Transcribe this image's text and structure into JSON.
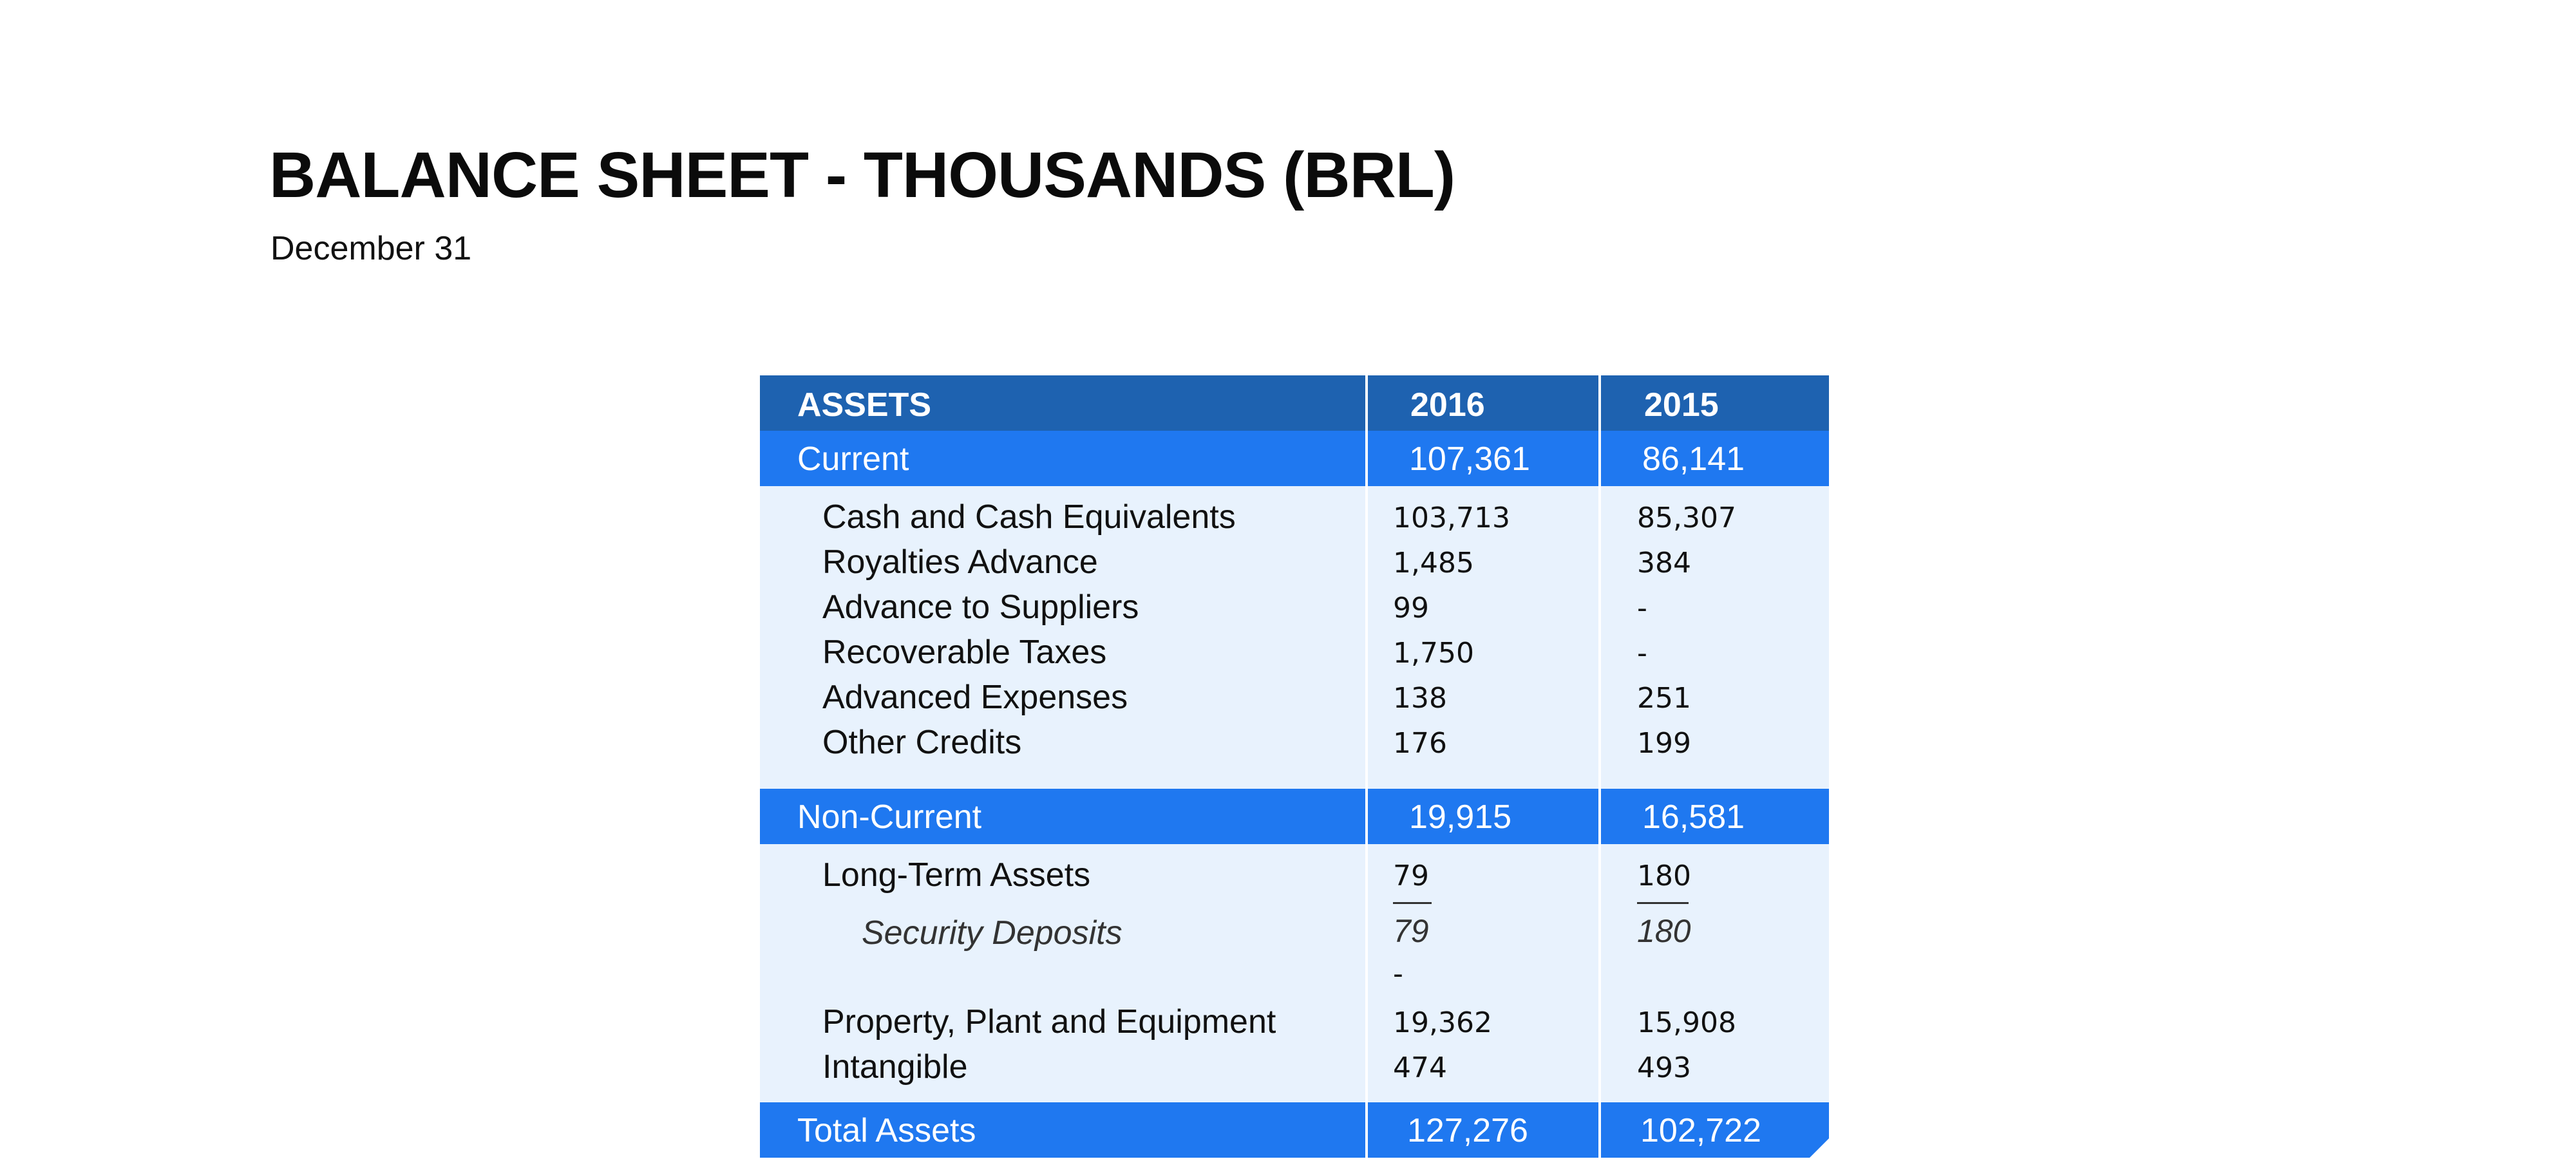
{
  "title": "BALANCE SHEET - THOUSANDS (BRL)",
  "subtitle": "December 31",
  "table": {
    "header": {
      "label": "ASSETS",
      "col1": "2016",
      "col2": "2015"
    },
    "current": {
      "label": "Current",
      "col1": "107,361",
      "col2": "86,141",
      "rows": [
        {
          "label": "Cash and Cash Equivalents",
          "col1": "103,713",
          "col2": "85,307"
        },
        {
          "label": "Royalties Advance",
          "col1": "1,485",
          "col2": "384"
        },
        {
          "label": "Advance to Suppliers",
          "col1": "99",
          "col2": "-"
        },
        {
          "label": "Recoverable Taxes",
          "col1": "1,750",
          "col2": "-"
        },
        {
          "label": "Advanced Expenses",
          "col1": "138",
          "col2": "251"
        },
        {
          "label": "Other Credits",
          "col1": "176",
          "col2": "199"
        }
      ]
    },
    "non_current": {
      "label": "Non-Current",
      "col1": "19,915",
      "col2": "16,581",
      "long_term": {
        "label": "Long-Term Assets",
        "col1": "79",
        "col2": "180"
      },
      "security_deposits": {
        "label": "Security Deposits",
        "col1": "79",
        "col2": "180"
      },
      "dash": "-",
      "rows": [
        {
          "label": "Property, Plant and Equipment",
          "col1": "19,362",
          "col2": "15,908"
        },
        {
          "label": "Intangible",
          "col1": "474",
          "col2": "493"
        }
      ]
    },
    "total": {
      "label": "Total Assets",
      "col1": "127,276",
      "col2": "102,722"
    }
  },
  "colors": {
    "header_band": "#1e62b0",
    "section_band": "#1f78f0",
    "body_bg": "#e8f2fd"
  }
}
